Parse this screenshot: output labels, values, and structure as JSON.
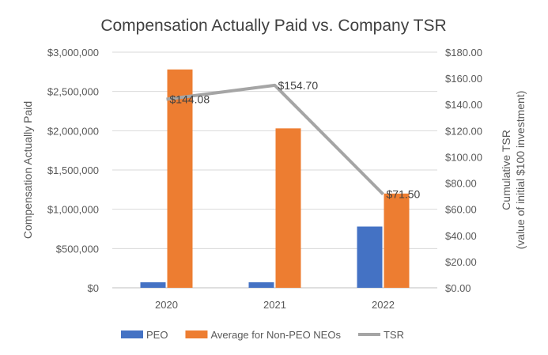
{
  "chart_data": {
    "type": "bar",
    "title": "Compensation Actually Paid vs. Company TSR",
    "categories": [
      "2020",
      "2021",
      "2022"
    ],
    "y_left": {
      "label": "Compensation Actually Paid",
      "lim": [
        0,
        3000000
      ],
      "ticks": [
        0,
        500000,
        1000000,
        1500000,
        2000000,
        2500000,
        3000000
      ],
      "tick_labels": [
        "$0",
        "$500,000",
        "$1,000,000",
        "$1,500,000",
        "$2,000,000",
        "$2,500,000",
        "$3,000,000"
      ]
    },
    "y_right": {
      "label_line1": "Cumulative TSR",
      "label_line2": "(value of initial $100 investment)",
      "lim": [
        0,
        180
      ],
      "ticks": [
        0,
        20,
        40,
        60,
        80,
        100,
        120,
        140,
        160,
        180
      ],
      "tick_labels": [
        "$0.00",
        "$20.00",
        "$40.00",
        "$60.00",
        "$80.00",
        "$100.00",
        "$120.00",
        "$140.00",
        "$160.00",
        "$180.00"
      ]
    },
    "series": [
      {
        "name": "PEO",
        "type": "bar",
        "axis": "left",
        "color": "#4472C4",
        "values": [
          70000,
          70000,
          780000
        ]
      },
      {
        "name": "Average for Non-PEO NEOs",
        "type": "bar",
        "axis": "left",
        "color": "#ED7D31",
        "values": [
          2780000,
          2030000,
          1200000
        ]
      },
      {
        "name": "TSR",
        "type": "line",
        "axis": "right",
        "color": "#A5A5A5",
        "values": [
          144.08,
          154.7,
          71.5
        ],
        "data_labels": [
          "$144.08",
          "$154.70",
          "$71.50"
        ]
      }
    ],
    "grid": "horizontal",
    "legend_position": "bottom"
  }
}
